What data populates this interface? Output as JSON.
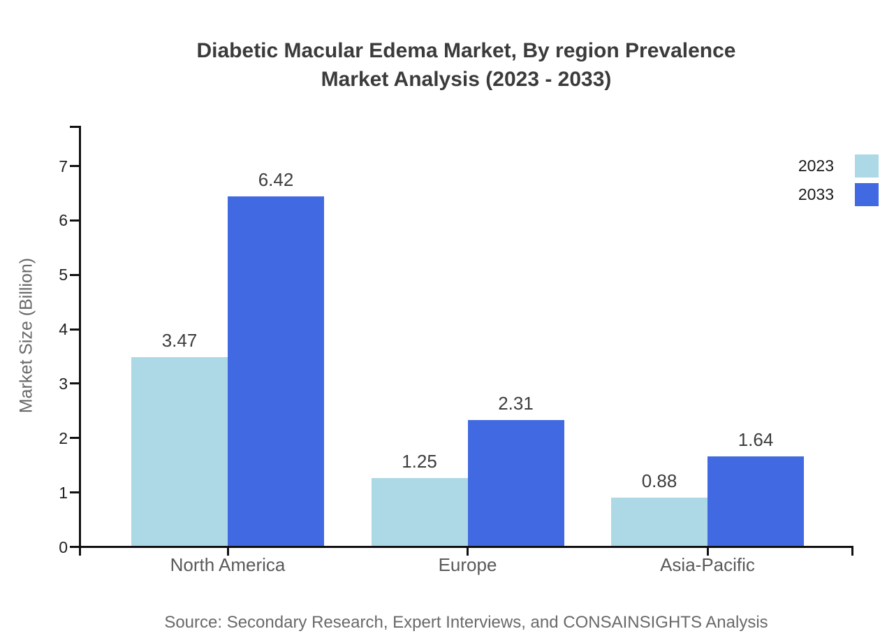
{
  "title": {
    "line1": "Diabetic Macular Edema Market, By region Prevalence",
    "line2": "Market Analysis (2023 - 2033)"
  },
  "source": {
    "text": "Source: Secondary Research, Expert Interviews, and CONSAINSIGHTS Analysis"
  },
  "chart_data": {
    "type": "bar",
    "title": "Diabetic Macular Edema Market, By region Prevalence Market Analysis (2023 - 2033)",
    "categories": [
      "North America",
      "Europe",
      "Asia-Pacific"
    ],
    "series": [
      {
        "name": "2023",
        "color": "#ADD8E6",
        "values": [
          3.47,
          1.25,
          0.88
        ]
      },
      {
        "name": "2033",
        "color": "#4169E1",
        "values": [
          6.42,
          2.31,
          1.64
        ]
      }
    ],
    "xlabel": "",
    "ylabel": "Market Size (Billion)",
    "ylim": [
      0,
      7
    ],
    "yticks": [
      0,
      1,
      2,
      3,
      4,
      5,
      6,
      7
    ],
    "bar_value_labels": [
      "3.47",
      "6.42",
      "1.25",
      "2.31",
      "0.88",
      "1.64"
    ],
    "grid": false,
    "legend_position": "top-right",
    "source": "Source: Secondary Research, Expert Interviews, and CONSAINSIGHTS Analysis"
  },
  "colors": {
    "axis": "#111111",
    "title_text": "#3b3b3b",
    "y_tick_text": "#1f1f1f",
    "category_text": "#595959",
    "value_label_text": "#3d3d3d",
    "muted_text": "#696969",
    "background": "#ffffff"
  }
}
